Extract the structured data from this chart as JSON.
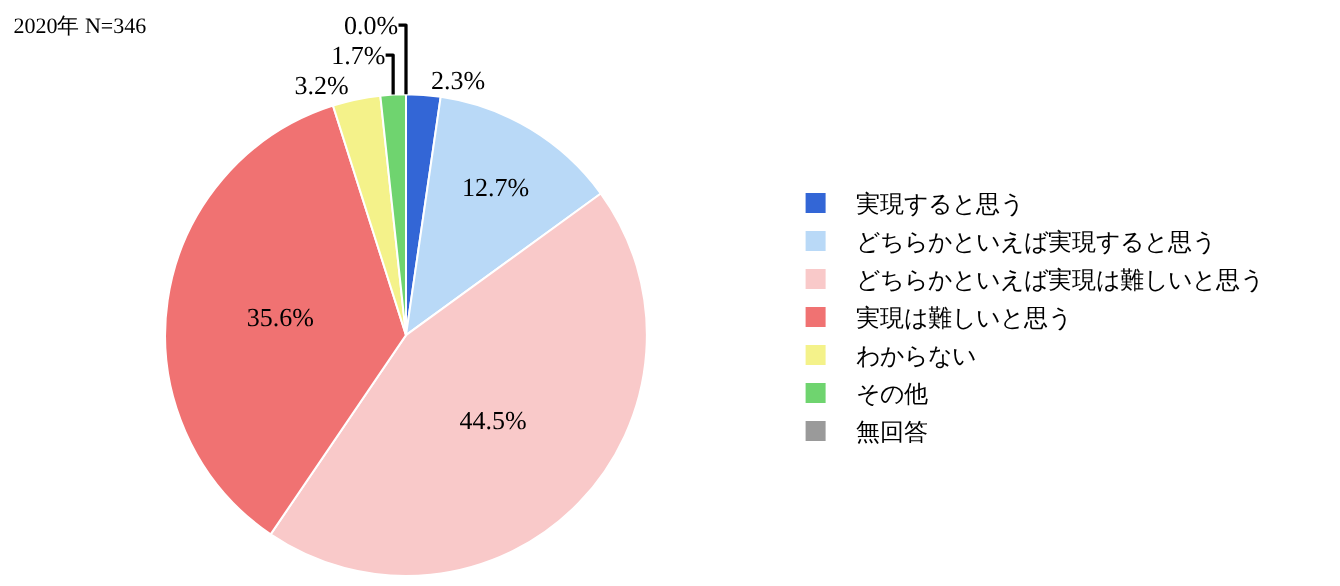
{
  "chart_data": {
    "type": "pie",
    "title": "2020年 N=346",
    "categories": [
      "実現すると思う",
      "どちらかといえば実現すると思う",
      "どちらかといえば実現は難しいと思う",
      "実現は難しいと思う",
      "わからない",
      "その他",
      "無回答"
    ],
    "values": [
      2.3,
      12.7,
      44.5,
      35.6,
      3.2,
      1.7,
      0.0
    ],
    "colors": [
      "#3366d6",
      "#b9d9f7",
      "#f9c9c9",
      "#f07272",
      "#f4f28a",
      "#6fd46f",
      "#9a9a9a"
    ],
    "value_labels": [
      "2.3%",
      "12.7%",
      "44.5%",
      "35.6%",
      "3.2%",
      "1.7%",
      "0.0%"
    ],
    "legend": "right"
  }
}
